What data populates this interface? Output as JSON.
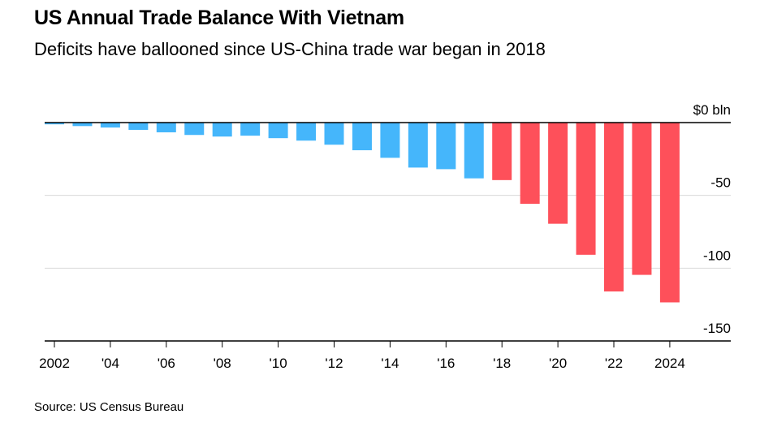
{
  "header": {
    "title": "US Annual Trade Balance With Vietnam",
    "subtitle": "Deficits have ballooned since US-China trade war began in 2018"
  },
  "footer": {
    "source": "Source: US Census Bureau"
  },
  "colors": {
    "pre_trade_war": "#45b6fb",
    "post_trade_war": "#fe505a",
    "gridline": "#d9d9d9",
    "axis": "#000000"
  },
  "chart_data": {
    "type": "bar",
    "title": "US Annual Trade Balance With Vietnam",
    "subtitle": "Deficits have ballooned since US-China trade war began in 2018",
    "xlabel": "",
    "ylabel": "$ bln",
    "ylim": [
      -150,
      0
    ],
    "yticks": [
      0,
      -50,
      -100,
      -150
    ],
    "ytick_labels": [
      "$0 bln",
      "-50",
      "-100",
      "-150"
    ],
    "categories": [
      "2002",
      "2003",
      "2004",
      "2005",
      "2006",
      "2007",
      "2008",
      "2009",
      "2010",
      "2011",
      "2012",
      "2013",
      "2014",
      "2015",
      "2016",
      "2017",
      "2018",
      "2019",
      "2020",
      "2021",
      "2022",
      "2023",
      "2024"
    ],
    "xtick_labels": [
      {
        "year": "2002",
        "label": "2002"
      },
      {
        "year": "2004",
        "label": "'04"
      },
      {
        "year": "2006",
        "label": "'06"
      },
      {
        "year": "2008",
        "label": "'08"
      },
      {
        "year": "2010",
        "label": "'10"
      },
      {
        "year": "2012",
        "label": "'12"
      },
      {
        "year": "2014",
        "label": "'14"
      },
      {
        "year": "2016",
        "label": "'16"
      },
      {
        "year": "2018",
        "label": "'18"
      },
      {
        "year": "2020",
        "label": "'20"
      },
      {
        "year": "2022",
        "label": "'22"
      },
      {
        "year": "2024",
        "label": "2024"
      }
    ],
    "series": [
      {
        "name": "Trade balance",
        "values": [
          -1.2,
          -2.4,
          -3.4,
          -5.0,
          -6.7,
          -8.5,
          -9.6,
          -9.0,
          -10.7,
          -12.4,
          -15.2,
          -19.0,
          -24.2,
          -30.9,
          -32.0,
          -38.3,
          -39.5,
          -55.8,
          -69.5,
          -90.8,
          -116.0,
          -104.6,
          -123.5
        ]
      }
    ],
    "highlight": {
      "from_year": "2018",
      "meaning": "US-China trade war began"
    },
    "grid": true,
    "legend": "none",
    "yaxis_side": "right"
  }
}
